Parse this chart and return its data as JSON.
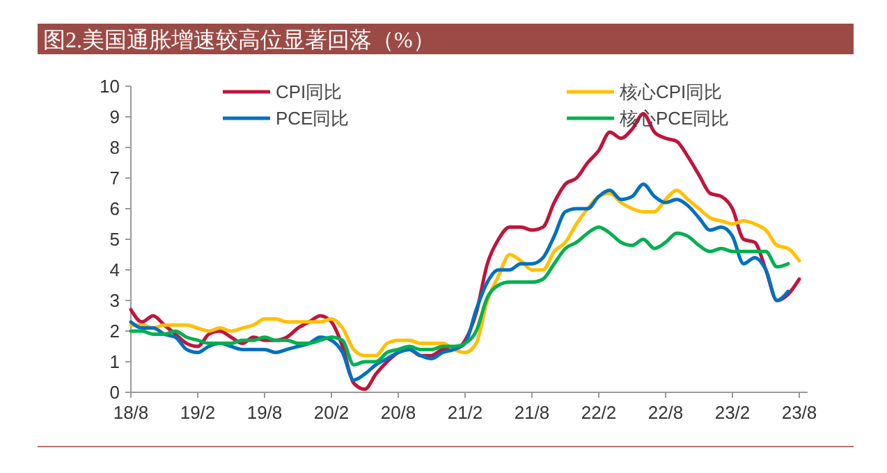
{
  "chart_data": {
    "type": "line",
    "title": "图2.美国通胀增速较高位显著回落（%）",
    "categories": [
      "18/8",
      null,
      null,
      null,
      null,
      null,
      "19/2",
      null,
      null,
      null,
      null,
      null,
      "19/8",
      null,
      null,
      null,
      null,
      null,
      "20/2",
      null,
      null,
      null,
      null,
      null,
      "20/8",
      null,
      null,
      null,
      null,
      null,
      "21/2",
      null,
      null,
      null,
      null,
      null,
      "21/8",
      null,
      null,
      null,
      null,
      null,
      "22/2",
      null,
      null,
      null,
      null,
      null,
      "22/8",
      null,
      null,
      null,
      null,
      null,
      "23/2",
      null,
      null,
      null,
      null,
      null,
      "23/8"
    ],
    "series": [
      {
        "name": "CPI同比",
        "color": "#c0143c",
        "values": [
          2.7,
          2.3,
          2.5,
          2.2,
          1.9,
          1.6,
          1.5,
          1.9,
          2.0,
          1.8,
          1.6,
          1.8,
          1.7,
          1.7,
          1.8,
          2.1,
          2.3,
          2.5,
          2.3,
          1.5,
          0.3,
          0.1,
          0.6,
          1.0,
          1.3,
          1.4,
          1.2,
          1.2,
          1.4,
          1.4,
          1.7,
          2.6,
          4.2,
          5.0,
          5.4,
          5.4,
          5.3,
          5.4,
          6.2,
          6.8,
          7.0,
          7.5,
          7.9,
          8.5,
          8.3,
          8.6,
          9.1,
          8.5,
          8.3,
          8.2,
          7.7,
          7.1,
          6.5,
          6.4,
          6.0,
          5.0,
          4.9,
          4.0,
          3.0,
          3.2,
          3.7
        ]
      },
      {
        "name": "核心CPI同比",
        "color": "#ffc000",
        "values": [
          2.2,
          2.2,
          2.1,
          2.2,
          2.2,
          2.2,
          2.1,
          2.0,
          2.1,
          2.0,
          2.1,
          2.2,
          2.4,
          2.4,
          2.3,
          2.3,
          2.3,
          2.3,
          2.4,
          2.1,
          1.4,
          1.2,
          1.2,
          1.6,
          1.7,
          1.7,
          1.6,
          1.6,
          1.6,
          1.4,
          1.3,
          1.6,
          3.0,
          3.8,
          4.5,
          4.3,
          4.0,
          4.0,
          4.6,
          4.9,
          5.5,
          6.0,
          6.4,
          6.5,
          6.2,
          6.0,
          5.9,
          5.9,
          6.3,
          6.6,
          6.3,
          6.0,
          5.7,
          5.6,
          5.5,
          5.6,
          5.5,
          5.3,
          4.8,
          4.7,
          4.3
        ]
      },
      {
        "name": "PCE同比",
        "color": "#0070c0",
        "values": [
          2.3,
          2.1,
          2.1,
          1.9,
          1.8,
          1.4,
          1.3,
          1.5,
          1.6,
          1.5,
          1.4,
          1.4,
          1.4,
          1.3,
          1.4,
          1.5,
          1.6,
          1.8,
          1.7,
          1.3,
          0.4,
          0.6,
          0.9,
          1.1,
          1.3,
          1.4,
          1.2,
          1.1,
          1.3,
          1.4,
          1.6,
          2.7,
          3.6,
          4.0,
          4.0,
          4.2,
          4.2,
          4.4,
          5.1,
          5.9,
          6.0,
          6.0,
          6.4,
          6.6,
          6.3,
          6.4,
          6.8,
          6.4,
          6.2,
          6.3,
          6.1,
          5.7,
          5.3,
          5.4,
          5.1,
          4.2,
          4.4,
          4.0,
          3.0,
          3.3,
          null
        ]
      },
      {
        "name": "核心PCE同比",
        "color": "#00b050",
        "values": [
          2.0,
          2.0,
          1.9,
          1.9,
          2.0,
          1.8,
          1.7,
          1.6,
          1.6,
          1.6,
          1.7,
          1.7,
          1.8,
          1.7,
          1.7,
          1.6,
          1.6,
          1.7,
          1.8,
          1.7,
          0.9,
          1.0,
          1.0,
          1.3,
          1.4,
          1.5,
          1.4,
          1.4,
          1.5,
          1.5,
          1.6,
          2.0,
          3.1,
          3.5,
          3.6,
          3.6,
          3.6,
          3.7,
          4.2,
          4.7,
          4.9,
          5.2,
          5.4,
          5.2,
          4.9,
          4.8,
          5.0,
          4.7,
          4.9,
          5.2,
          5.1,
          4.8,
          4.6,
          4.7,
          4.6,
          4.6,
          4.6,
          4.6,
          4.1,
          4.2,
          null
        ]
      }
    ],
    "ylim": [
      0,
      10
    ],
    "yticks": [
      0,
      1,
      2,
      3,
      4,
      5,
      6,
      7,
      8,
      9,
      10
    ],
    "grid": false,
    "legend": "top",
    "line_style": "solid",
    "marker": "none"
  }
}
